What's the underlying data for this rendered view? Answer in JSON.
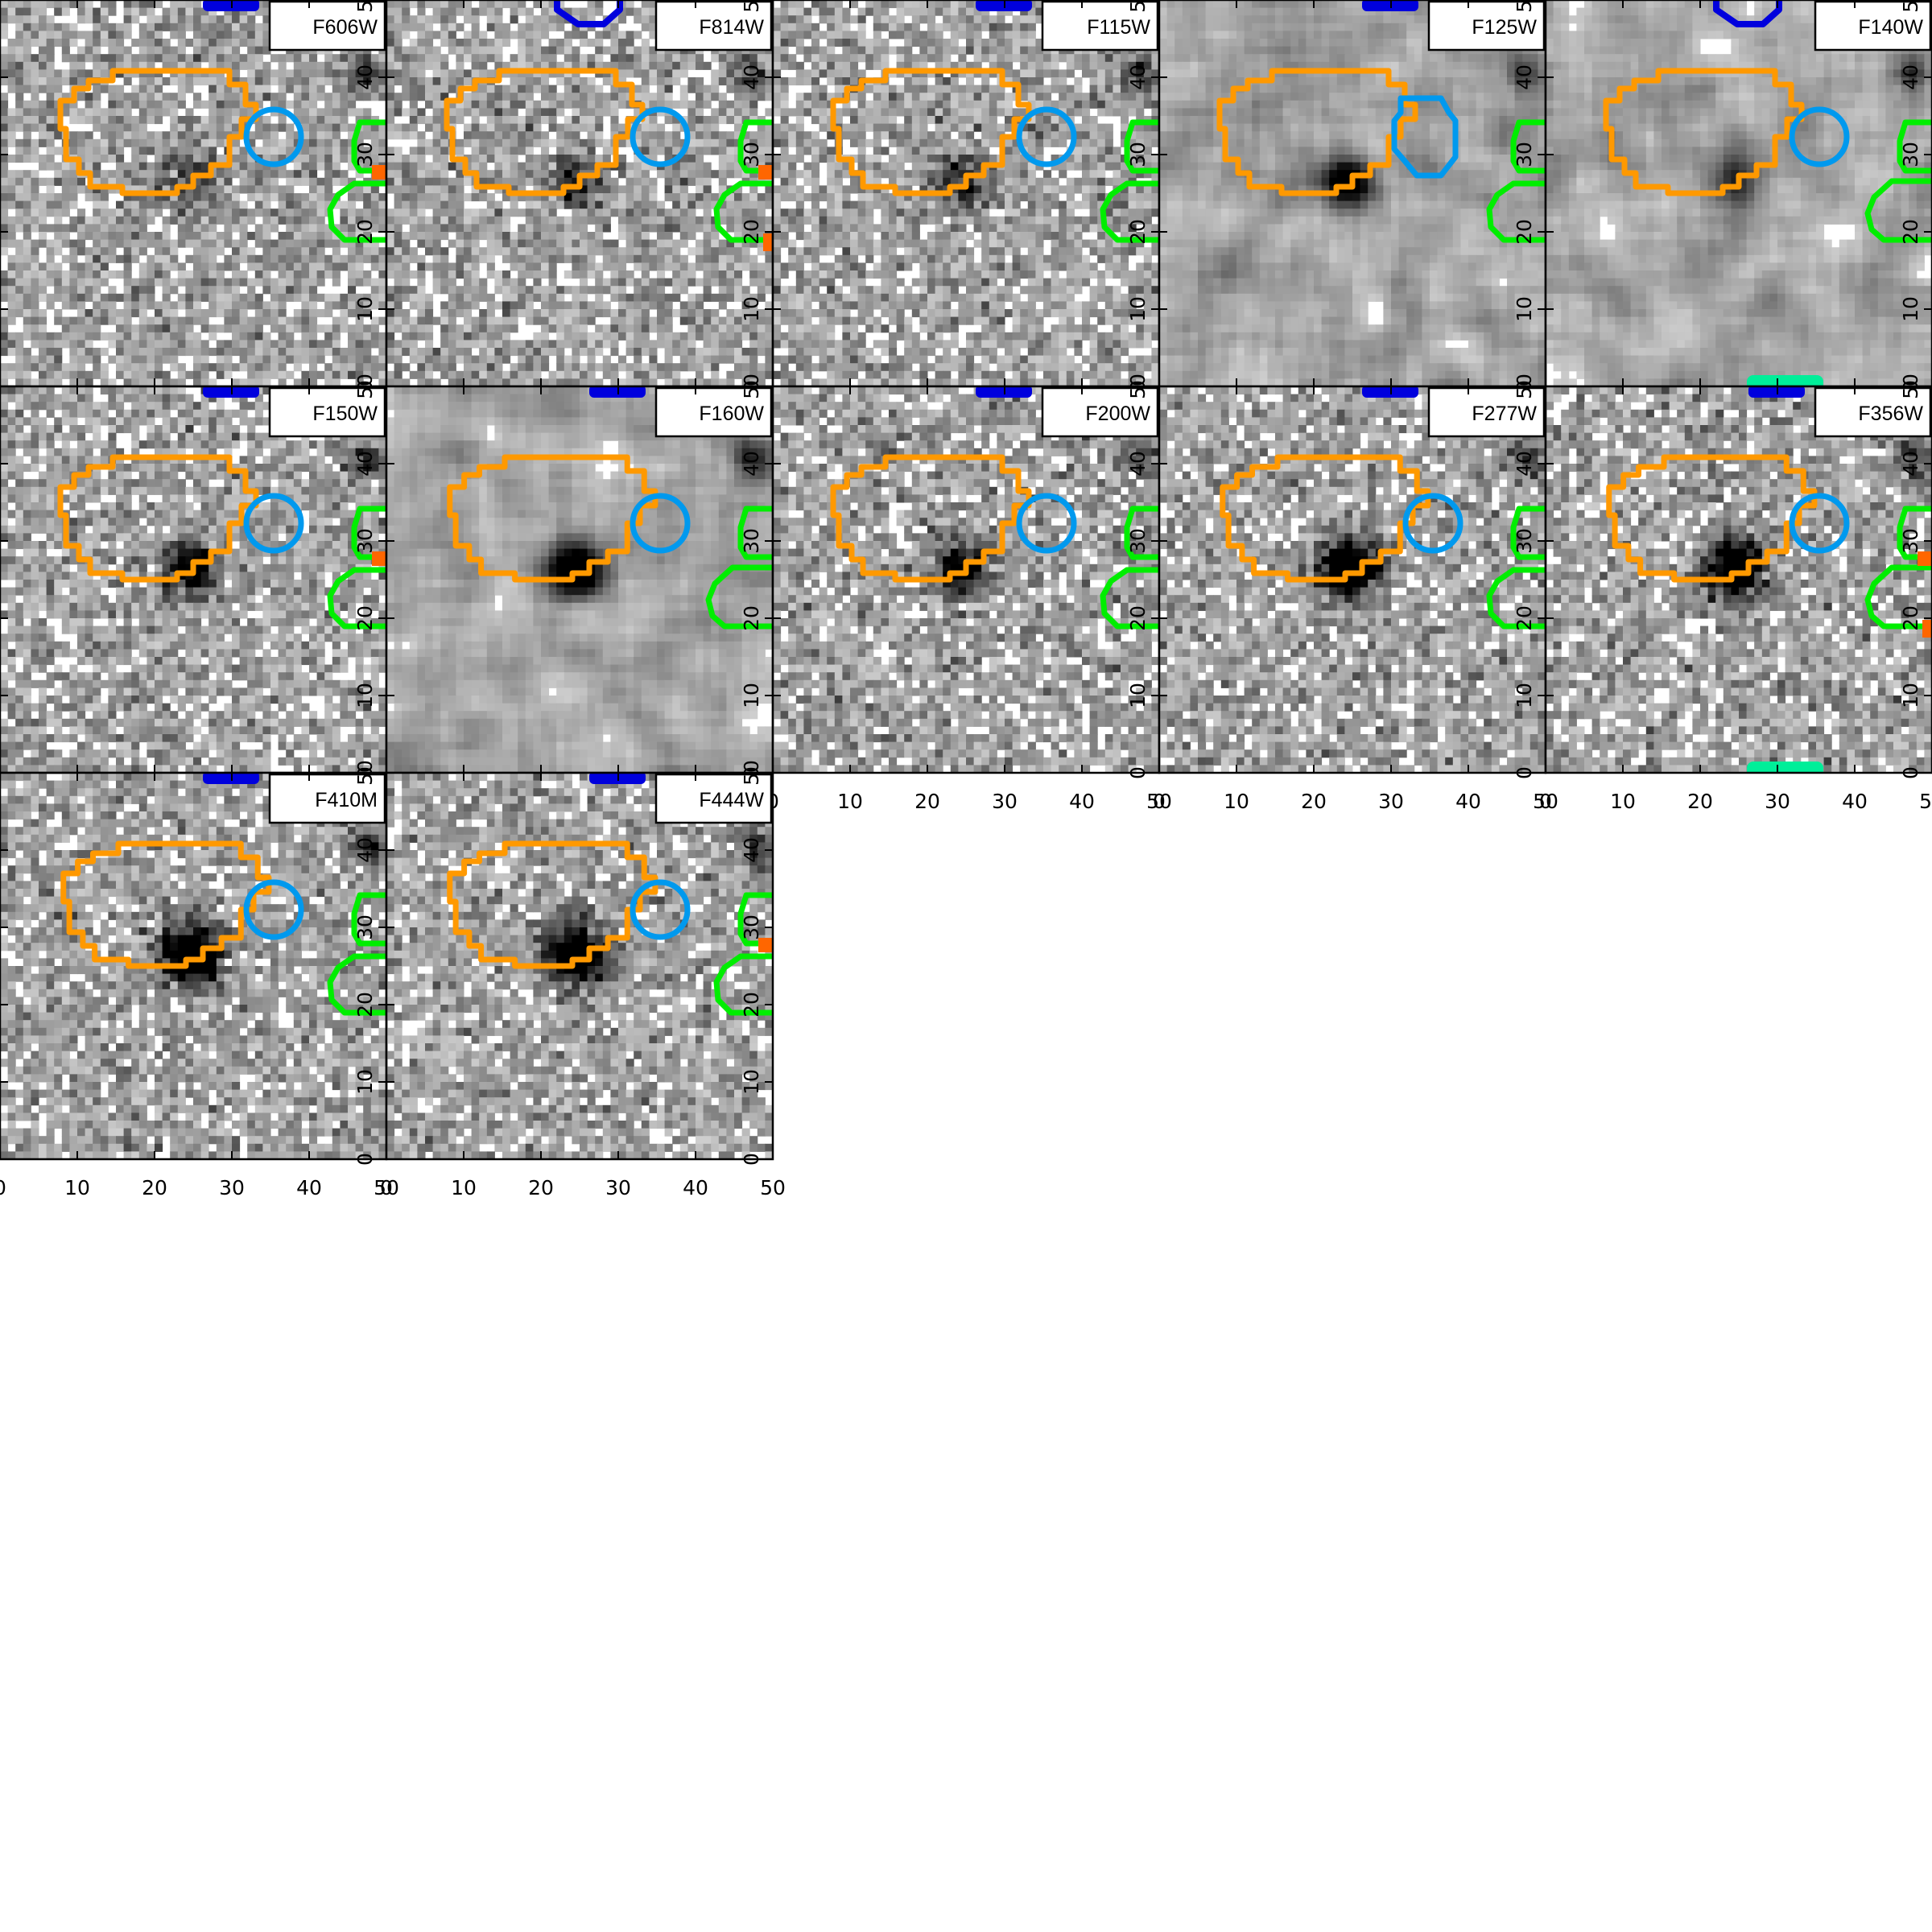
{
  "figure": {
    "panels": [
      {
        "filter": "F606W",
        "smooth": false,
        "dark": 0,
        "red_marker": true,
        "blue_top": "filled",
        "cyan_big": false,
        "green_big": false,
        "teal_bottom": false,
        "red_right_bottom": false
      },
      {
        "filter": "F814W",
        "smooth": false,
        "dark": 1,
        "red_marker": true,
        "blue_top": "outline",
        "cyan_big": false,
        "green_big": false,
        "teal_bottom": false,
        "red_right_bottom": true
      },
      {
        "filter": "F115W",
        "smooth": false,
        "dark": 1,
        "red_marker": false,
        "blue_top": "filled",
        "cyan_big": false,
        "green_big": false,
        "teal_bottom": false,
        "red_right_bottom": false
      },
      {
        "filter": "F125W",
        "smooth": true,
        "dark": 2,
        "red_marker": false,
        "blue_top": "filled",
        "cyan_big": true,
        "green_big": false,
        "teal_bottom": false,
        "red_right_bottom": false
      },
      {
        "filter": "F140W",
        "smooth": true,
        "dark": 1,
        "red_marker": false,
        "blue_top": "outline",
        "cyan_big": false,
        "green_big": true,
        "teal_bottom": true,
        "red_right_bottom": false
      },
      {
        "filter": "F150W",
        "smooth": false,
        "dark": 2,
        "red_marker": true,
        "blue_top": "filled",
        "cyan_big": false,
        "green_big": false,
        "teal_bottom": false,
        "red_right_bottom": false
      },
      {
        "filter": "F160W",
        "smooth": true,
        "dark": 3,
        "red_marker": false,
        "blue_top": "filled",
        "cyan_big": false,
        "green_big": true,
        "teal_bottom": false,
        "red_right_bottom": false
      },
      {
        "filter": "F200W",
        "smooth": false,
        "dark": 2,
        "red_marker": false,
        "blue_top": "filled",
        "cyan_big": false,
        "green_big": false,
        "teal_bottom": false,
        "red_right_bottom": false
      },
      {
        "filter": "F277W",
        "smooth": false,
        "dark": 3,
        "red_marker": false,
        "blue_top": "filled",
        "cyan_big": false,
        "green_big": false,
        "teal_bottom": false,
        "red_right_bottom": false
      },
      {
        "filter": "F356W",
        "smooth": false,
        "dark": 3,
        "red_marker": true,
        "blue_top": "filled",
        "cyan_big": false,
        "green_big": true,
        "teal_bottom": true,
        "red_right_bottom": true
      },
      {
        "filter": "F410M",
        "smooth": false,
        "dark": 3,
        "red_marker": false,
        "blue_top": "filled",
        "cyan_big": false,
        "green_big": false,
        "teal_bottom": false,
        "red_right_bottom": false
      },
      {
        "filter": "F444W",
        "smooth": false,
        "dark": 3,
        "red_marker": true,
        "blue_top": "filled",
        "cyan_big": false,
        "green_big": false,
        "teal_bottom": false,
        "red_right_bottom": false
      }
    ],
    "axis_ticks": [
      "0",
      "10",
      "20",
      "30",
      "40",
      "50"
    ],
    "colors": {
      "main_source": "#ff9900",
      "companion": "#0099ee",
      "neighbor": "#00ee00",
      "top_source": "#0000dd",
      "marker": "#ff6600",
      "bottom_source": "#00ee99"
    }
  }
}
